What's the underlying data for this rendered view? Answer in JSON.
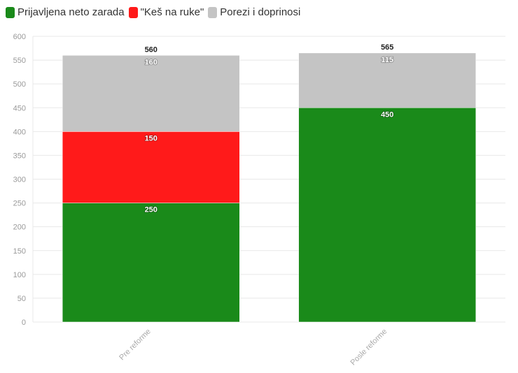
{
  "chart_data": {
    "type": "bar",
    "stacked": true,
    "categories": [
      "Pre reforme",
      "Posle reforme"
    ],
    "series": [
      {
        "name": "Prijavljena neto zarada",
        "color": "#1a8a1a",
        "values": [
          250,
          450
        ]
      },
      {
        "name": "\"Keš na ruke\"",
        "color": "#ff1a1a",
        "values": [
          150,
          0
        ]
      },
      {
        "name": "Porezi i doprinosi",
        "color": "#c4c4c4",
        "values": [
          160,
          115
        ]
      }
    ],
    "totals": [
      560,
      565
    ],
    "yticks": [
      0,
      50,
      100,
      150,
      200,
      250,
      300,
      350,
      400,
      450,
      500,
      550,
      600
    ],
    "ylim": [
      0,
      600
    ],
    "title": "",
    "xlabel": "",
    "ylabel": "",
    "legend_position": "top-left",
    "grid": true
  }
}
